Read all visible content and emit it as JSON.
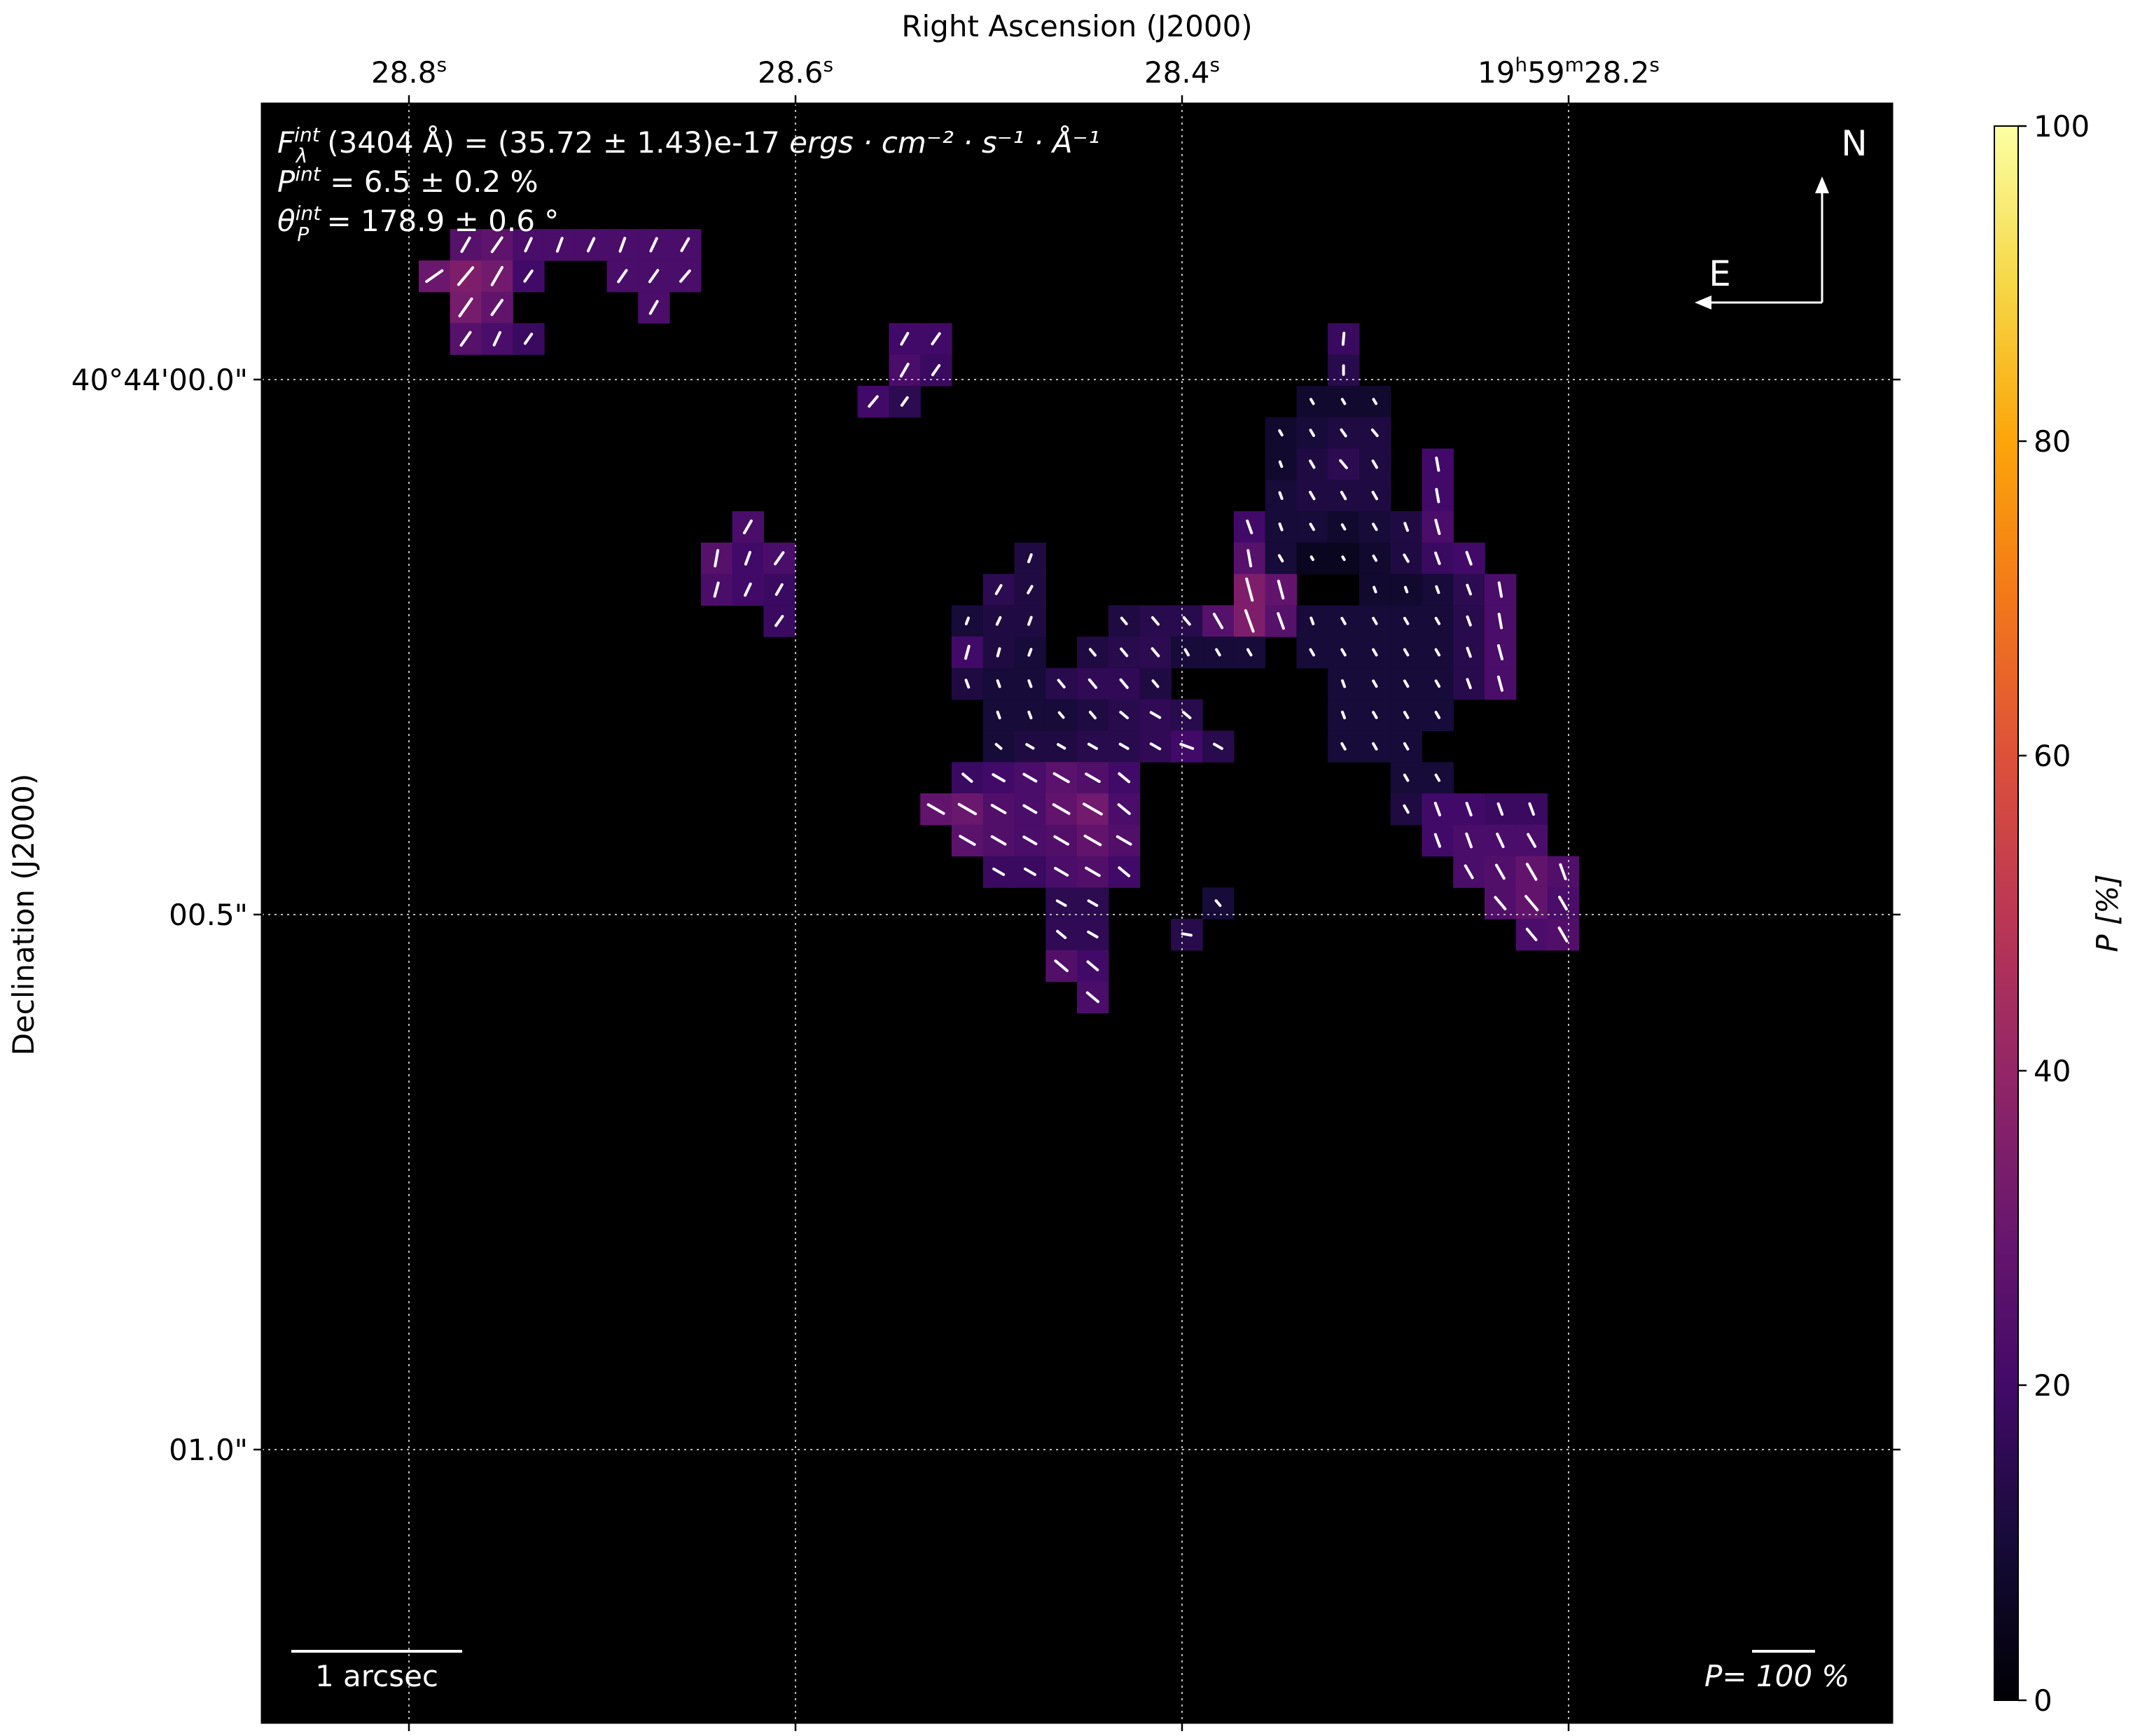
{
  "chart_data": {
    "type": "heatmap",
    "subtype": "polarization map with vectors",
    "colormap": "inferno",
    "colorbar": {
      "label": "P [%]",
      "range": [
        0,
        100
      ],
      "ticks": [
        "0",
        "20",
        "40",
        "60",
        "80",
        "100"
      ]
    },
    "x_axis": {
      "label": "Right Ascension (J2000)",
      "ticks": [
        {
          "main": "28.8",
          "sup": "s"
        },
        {
          "main": "28.6",
          "sup": "s"
        },
        {
          "main": "28.4",
          "sup": "s"
        },
        {
          "main": "19",
          "sup": "h",
          "main2": "59",
          "sup2": "m",
          "main3": "28.2",
          "sup3": "s"
        }
      ]
    },
    "y_axis": {
      "label": "Declination (J2000)",
      "ticks": [
        "40°44'00.0\"",
        "00.5\"",
        "01.0\""
      ]
    },
    "grid": true,
    "annotations": {
      "flux": {
        "sym": "F",
        "sub": "λ",
        "sup": "int",
        "rest": "(3404 Å) = (35.72 ± 1.43)e-17 ",
        "units": "ergs · cm⁻² · s⁻¹ · Å⁻¹"
      },
      "pol": {
        "sym": "P",
        "sup": "int",
        "rest": " = 6.5 ± 0.2 %"
      },
      "angle": {
        "sym": "θ",
        "sub": "P",
        "sup": "int",
        "rest": " = 178.9 ± 0.6 °"
      },
      "compass_n": "N",
      "compass_e": "E",
      "scale_label": "1 arcsec",
      "vector_scale_label": "P= 100 %"
    },
    "pixel_grid": {
      "columns": 52,
      "rows": 52,
      "note": "cells list [column, row, P_percent, vector_angle_deg]"
    },
    "cells": [
      [
        6,
        4,
        25,
        30
      ],
      [
        7,
        4,
        27,
        35
      ],
      [
        8,
        4,
        22,
        25
      ],
      [
        9,
        4,
        22,
        20
      ],
      [
        10,
        4,
        22,
        25
      ],
      [
        11,
        4,
        22,
        20
      ],
      [
        12,
        4,
        22,
        25
      ],
      [
        13,
        4,
        22,
        30
      ],
      [
        5,
        5,
        30,
        55
      ],
      [
        6,
        5,
        35,
        40
      ],
      [
        7,
        5,
        32,
        30
      ],
      [
        8,
        5,
        20,
        35
      ],
      [
        11,
        5,
        22,
        35
      ],
      [
        12,
        5,
        22,
        35
      ],
      [
        13,
        5,
        22,
        40
      ],
      [
        6,
        6,
        33,
        35
      ],
      [
        7,
        6,
        28,
        35
      ],
      [
        12,
        6,
        22,
        30
      ],
      [
        6,
        7,
        25,
        35
      ],
      [
        7,
        7,
        22,
        25
      ],
      [
        8,
        7,
        18,
        35
      ],
      [
        20,
        7,
        20,
        30
      ],
      [
        21,
        7,
        20,
        35
      ],
      [
        20,
        8,
        22,
        30
      ],
      [
        21,
        8,
        18,
        35
      ],
      [
        19,
        9,
        20,
        40
      ],
      [
        20,
        9,
        15,
        35
      ],
      [
        34,
        7,
        18,
        5
      ],
      [
        34,
        8,
        14,
        0
      ],
      [
        33,
        9,
        8,
        -30
      ],
      [
        34,
        9,
        8,
        -30
      ],
      [
        35,
        9,
        8,
        -30
      ],
      [
        32,
        10,
        8,
        -30
      ],
      [
        33,
        10,
        10,
        -30
      ],
      [
        34,
        10,
        12,
        -35
      ],
      [
        35,
        10,
        12,
        -40
      ],
      [
        32,
        11,
        8,
        -20
      ],
      [
        33,
        11,
        12,
        -30
      ],
      [
        34,
        11,
        15,
        -40
      ],
      [
        35,
        11,
        12,
        -30
      ],
      [
        37,
        11,
        20,
        -10
      ],
      [
        32,
        12,
        10,
        -20
      ],
      [
        33,
        12,
        12,
        -30
      ],
      [
        34,
        12,
        12,
        -30
      ],
      [
        35,
        12,
        12,
        -30
      ],
      [
        37,
        12,
        20,
        -10
      ],
      [
        31,
        13,
        20,
        -20
      ],
      [
        32,
        13,
        10,
        -20
      ],
      [
        33,
        13,
        10,
        -30
      ],
      [
        34,
        13,
        8,
        -30
      ],
      [
        35,
        13,
        10,
        -30
      ],
      [
        36,
        13,
        12,
        -20
      ],
      [
        37,
        13,
        22,
        -15
      ],
      [
        15,
        13,
        22,
        30
      ],
      [
        14,
        14,
        25,
        10
      ],
      [
        15,
        14,
        20,
        20
      ],
      [
        16,
        14,
        22,
        35
      ],
      [
        24,
        14,
        12,
        20
      ],
      [
        31,
        14,
        25,
        -10
      ],
      [
        32,
        14,
        10,
        -30
      ],
      [
        33,
        14,
        5,
        -30
      ],
      [
        34,
        14,
        5,
        -30
      ],
      [
        35,
        14,
        8,
        -30
      ],
      [
        36,
        14,
        12,
        -30
      ],
      [
        37,
        14,
        18,
        -20
      ],
      [
        38,
        14,
        20,
        -20
      ],
      [
        14,
        15,
        22,
        15
      ],
      [
        15,
        15,
        20,
        25
      ],
      [
        16,
        15,
        18,
        30
      ],
      [
        23,
        15,
        15,
        30
      ],
      [
        24,
        15,
        12,
        30
      ],
      [
        31,
        15,
        35,
        -15
      ],
      [
        32,
        15,
        28,
        -15
      ],
      [
        35,
        15,
        8,
        -20
      ],
      [
        36,
        15,
        8,
        -20
      ],
      [
        37,
        15,
        10,
        -20
      ],
      [
        38,
        15,
        15,
        -20
      ],
      [
        39,
        15,
        22,
        -10
      ],
      [
        16,
        16,
        18,
        35
      ],
      [
        22,
        16,
        10,
        20
      ],
      [
        23,
        16,
        12,
        25
      ],
      [
        24,
        16,
        12,
        20
      ],
      [
        27,
        16,
        12,
        -40
      ],
      [
        28,
        16,
        14,
        -40
      ],
      [
        29,
        16,
        14,
        -40
      ],
      [
        30,
        16,
        25,
        -30
      ],
      [
        31,
        16,
        35,
        -20
      ],
      [
        32,
        16,
        25,
        -20
      ],
      [
        33,
        16,
        10,
        -20
      ],
      [
        34,
        16,
        10,
        -30
      ],
      [
        35,
        16,
        10,
        -30
      ],
      [
        36,
        16,
        10,
        -30
      ],
      [
        37,
        16,
        10,
        -30
      ],
      [
        38,
        16,
        14,
        -20
      ],
      [
        39,
        16,
        22,
        -10
      ],
      [
        22,
        17,
        20,
        15
      ],
      [
        23,
        17,
        12,
        15
      ],
      [
        24,
        17,
        10,
        20
      ],
      [
        26,
        17,
        12,
        -40
      ],
      [
        27,
        17,
        14,
        -40
      ],
      [
        28,
        17,
        15,
        -40
      ],
      [
        29,
        17,
        10,
        -30
      ],
      [
        30,
        17,
        10,
        -30
      ],
      [
        31,
        17,
        10,
        -30
      ],
      [
        33,
        17,
        10,
        -30
      ],
      [
        34,
        17,
        10,
        -30
      ],
      [
        35,
        17,
        10,
        -30
      ],
      [
        36,
        17,
        10,
        -30
      ],
      [
        37,
        17,
        10,
        -30
      ],
      [
        38,
        17,
        14,
        -20
      ],
      [
        39,
        17,
        22,
        -15
      ],
      [
        22,
        18,
        12,
        -20
      ],
      [
        23,
        18,
        10,
        -20
      ],
      [
        24,
        18,
        10,
        -20
      ],
      [
        25,
        18,
        14,
        -40
      ],
      [
        26,
        18,
        16,
        -40
      ],
      [
        27,
        18,
        16,
        -40
      ],
      [
        28,
        18,
        12,
        -40
      ],
      [
        34,
        18,
        10,
        -20
      ],
      [
        35,
        18,
        10,
        -30
      ],
      [
        36,
        18,
        10,
        -30
      ],
      [
        37,
        18,
        10,
        -30
      ],
      [
        38,
        18,
        14,
        -20
      ],
      [
        39,
        18,
        22,
        -15
      ],
      [
        23,
        19,
        10,
        -20
      ],
      [
        24,
        19,
        10,
        -20
      ],
      [
        25,
        19,
        10,
        -40
      ],
      [
        26,
        19,
        12,
        -40
      ],
      [
        27,
        19,
        14,
        -50
      ],
      [
        28,
        19,
        16,
        -60
      ],
      [
        29,
        19,
        14,
        -50
      ],
      [
        34,
        19,
        10,
        -20
      ],
      [
        35,
        19,
        10,
        -30
      ],
      [
        36,
        19,
        10,
        -30
      ],
      [
        37,
        19,
        10,
        -30
      ],
      [
        23,
        20,
        10,
        -50
      ],
      [
        24,
        20,
        12,
        -60
      ],
      [
        25,
        20,
        12,
        -60
      ],
      [
        26,
        20,
        14,
        -60
      ],
      [
        27,
        20,
        14,
        -60
      ],
      [
        28,
        20,
        16,
        -60
      ],
      [
        29,
        20,
        20,
        -70
      ],
      [
        30,
        20,
        14,
        -60
      ],
      [
        34,
        20,
        10,
        -30
      ],
      [
        35,
        20,
        10,
        -30
      ],
      [
        36,
        20,
        10,
        -30
      ],
      [
        22,
        21,
        18,
        -50
      ],
      [
        23,
        21,
        20,
        -60
      ],
      [
        24,
        21,
        22,
        -60
      ],
      [
        25,
        21,
        26,
        -60
      ],
      [
        26,
        21,
        24,
        -60
      ],
      [
        27,
        21,
        20,
        -50
      ],
      [
        36,
        21,
        10,
        -30
      ],
      [
        37,
        21,
        10,
        -30
      ],
      [
        21,
        22,
        28,
        -60
      ],
      [
        22,
        22,
        30,
        -60
      ],
      [
        23,
        22,
        24,
        -60
      ],
      [
        24,
        22,
        22,
        -60
      ],
      [
        25,
        22,
        28,
        -60
      ],
      [
        26,
        22,
        32,
        -60
      ],
      [
        27,
        22,
        22,
        -50
      ],
      [
        36,
        22,
        12,
        -30
      ],
      [
        37,
        22,
        20,
        -20
      ],
      [
        38,
        22,
        20,
        -20
      ],
      [
        39,
        22,
        18,
        -20
      ],
      [
        40,
        22,
        18,
        -20
      ],
      [
        22,
        23,
        26,
        -60
      ],
      [
        23,
        23,
        24,
        -60
      ],
      [
        24,
        23,
        22,
        -60
      ],
      [
        25,
        23,
        24,
        -60
      ],
      [
        26,
        23,
        28,
        -60
      ],
      [
        27,
        23,
        24,
        -60
      ],
      [
        37,
        23,
        20,
        -20
      ],
      [
        38,
        23,
        22,
        -20
      ],
      [
        39,
        23,
        22,
        -25
      ],
      [
        40,
        23,
        22,
        -30
      ],
      [
        23,
        24,
        18,
        -60
      ],
      [
        24,
        24,
        18,
        -60
      ],
      [
        25,
        24,
        22,
        -60
      ],
      [
        26,
        24,
        24,
        -60
      ],
      [
        27,
        24,
        20,
        -50
      ],
      [
        38,
        24,
        22,
        -30
      ],
      [
        39,
        24,
        24,
        -30
      ],
      [
        40,
        24,
        28,
        -30
      ],
      [
        41,
        24,
        24,
        -20
      ],
      [
        25,
        25,
        15,
        -60
      ],
      [
        26,
        25,
        15,
        -60
      ],
      [
        30,
        25,
        10,
        -40
      ],
      [
        39,
        25,
        24,
        -40
      ],
      [
        40,
        25,
        28,
        -40
      ],
      [
        41,
        25,
        22,
        -30
      ],
      [
        25,
        26,
        16,
        -50
      ],
      [
        26,
        26,
        16,
        -60
      ],
      [
        29,
        26,
        14,
        -80
      ],
      [
        40,
        26,
        22,
        -40
      ],
      [
        41,
        26,
        24,
        -30
      ],
      [
        25,
        27,
        24,
        -50
      ],
      [
        26,
        27,
        20,
        -50
      ],
      [
        26,
        28,
        22,
        -50
      ]
    ]
  }
}
